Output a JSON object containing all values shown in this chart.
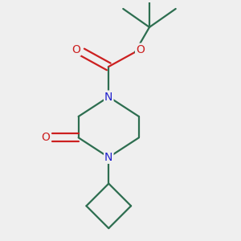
{
  "bg_color": "#efefef",
  "bond_color": "#2d6e50",
  "n_color": "#2020cc",
  "o_color": "#cc2020",
  "line_width": 1.6,
  "font_size_atom": 10,
  "fig_size": [
    3.0,
    3.0
  ],
  "dpi": 100,
  "xlim": [
    0.1,
    0.9
  ],
  "ylim": [
    0.05,
    0.95
  ]
}
